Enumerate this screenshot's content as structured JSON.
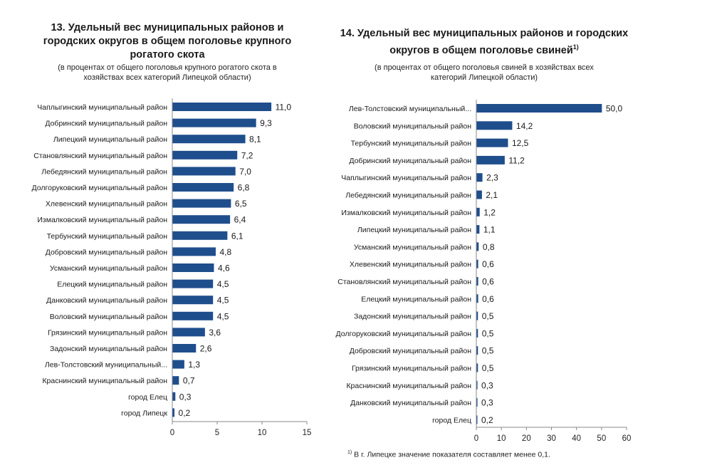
{
  "chart_data": [
    {
      "type": "bar",
      "orientation": "horizontal",
      "title": "13. Удельный вес муниципальных районов и городских округов в общем поголовье крупного рогатого скота",
      "subtitle": "(в процентах от общего поголовья крупного рогатого скота в хозяйствах всех категорий Липецкой области)",
      "categories": [
        "Чаплыгинский муниципальный район",
        "Добринский муниципальный район",
        "Липецкий муниципальный район",
        "Становлянский муниципальный район",
        "Лебедянский муниципальный район",
        "Долгоруковский муниципальный район",
        "Хлевенский муниципальный район",
        "Измалковский муниципальный район",
        "Тербунский муниципальный район",
        "Добровский муниципальный район",
        "Усманский муниципальный район",
        "Елецкий муниципальный район",
        "Данковский муниципальный район",
        "Воловский муниципальный район",
        "Грязинский муниципальный район",
        "Задонский муниципальный район",
        "Лев-Толстовский муниципальный...",
        "Краснинский муниципальный район",
        "город Елец",
        "город Липецк"
      ],
      "values": [
        11.0,
        9.3,
        8.1,
        7.2,
        7.0,
        6.8,
        6.5,
        6.4,
        6.1,
        4.8,
        4.6,
        4.5,
        4.5,
        4.5,
        3.6,
        2.6,
        1.3,
        0.7,
        0.3,
        0.2
      ],
      "value_labels": [
        "11,0",
        "9,3",
        "8,1",
        "7,2",
        "7,0",
        "6,8",
        "6,5",
        "6,4",
        "6,1",
        "4,8",
        "4,6",
        "4,5",
        "4,5",
        "4,5",
        "3,6",
        "2,6",
        "1,3",
        "0,7",
        "0,3",
        "0,2"
      ],
      "xlim": [
        0,
        15
      ],
      "xticks": [
        0,
        5,
        10,
        15
      ],
      "xtick_labels": [
        "0",
        "5",
        "10",
        "15"
      ],
      "grid": false,
      "bar_color": "#1f4e8c"
    },
    {
      "type": "bar",
      "orientation": "horizontal",
      "title": "14. Удельный вес муниципальных районов и городских округов в общем поголовье свиней",
      "title_sup": "1)",
      "subtitle": "(в процентах от общего поголовья свиней в хозяйствах всех категорий Липецкой области)",
      "categories": [
        "Лев-Толстовский муниципальный...",
        "Воловский муниципальный район",
        "Тербунский муниципальный район",
        "Добринский муниципальный район",
        "Чаплыгинский муниципальный район",
        "Лебедянский муниципальный район",
        "Измалковский муниципальный район",
        "Липецкий муниципальный район",
        "Усманский муниципальный район",
        "Хлевенский муниципальный район",
        "Становлянский муниципальный район",
        "Елецкий муниципальный район",
        "Задонский муниципальный район",
        "Долгоруковский муниципальный район",
        "Добровский муниципальный район",
        "Грязинский муниципальный район",
        "Краснинский муниципальный район",
        "Данковский муниципальный район",
        "город Елец"
      ],
      "values": [
        50.0,
        14.2,
        12.5,
        11.2,
        2.3,
        2.1,
        1.2,
        1.1,
        0.8,
        0.6,
        0.6,
        0.6,
        0.5,
        0.5,
        0.5,
        0.5,
        0.3,
        0.3,
        0.2
      ],
      "value_labels": [
        "50,0",
        "14,2",
        "12,5",
        "11,2",
        "2,3",
        "2,1",
        "1,2",
        "1,1",
        "0,8",
        "0,6",
        "0,6",
        "0,6",
        "0,5",
        "0,5",
        "0,5",
        "0,5",
        "0,3",
        "0,3",
        "0,2"
      ],
      "xlim": [
        0,
        60
      ],
      "xticks": [
        0,
        10,
        20,
        30,
        40,
        50,
        60
      ],
      "xtick_labels": [
        "0",
        "10",
        "20",
        "30",
        "40",
        "50",
        "60"
      ],
      "grid": false,
      "bar_color": "#1f4e8c"
    }
  ],
  "footnote": {
    "marker": "1)",
    "text": "В г. Липецке значение показателя составляет менее 0,1."
  }
}
